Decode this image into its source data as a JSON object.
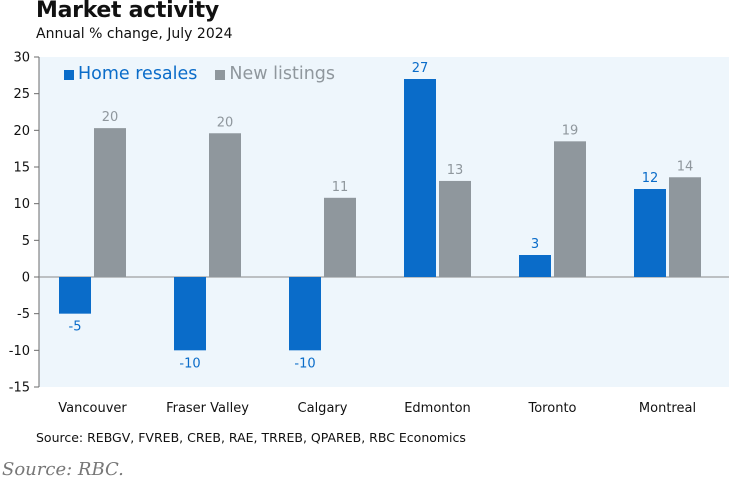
{
  "header": {
    "title": "Market activity",
    "subtitle": "Annual % change, July 2024"
  },
  "chart_data": {
    "type": "bar",
    "categories": [
      "Vancouver",
      "Fraser Valley",
      "Calgary",
      "Edmonton",
      "Toronto",
      "Montreal"
    ],
    "series": [
      {
        "name": "Home resales",
        "color": "#0a6cc9",
        "values": [
          -5,
          -10,
          -10,
          27,
          3,
          12
        ],
        "labels": [
          "-5",
          "-10",
          "-10",
          "27",
          "3",
          "12"
        ]
      },
      {
        "name": "New listings",
        "color": "#8f979d",
        "values": [
          20.3,
          19.6,
          10.8,
          13.1,
          18.5,
          13.6
        ],
        "labels": [
          "20",
          "20",
          "11",
          "13",
          "19",
          "14"
        ]
      }
    ],
    "ylim": [
      -15,
      30
    ],
    "yticks": [
      30,
      25,
      20,
      15,
      10,
      5,
      0,
      -5,
      -10,
      -15
    ],
    "ytick_labels": [
      "30",
      "25",
      "20",
      "15",
      "10",
      "5",
      "0",
      "-5",
      "-10",
      "-15"
    ],
    "legend_position": "top-left",
    "grid": false
  },
  "footer": {
    "source_note": "Source: REBGV, FVREB, CREB, RAE, TRREB, QPAREB, RBC Economics",
    "credit": "Source: RBC."
  }
}
